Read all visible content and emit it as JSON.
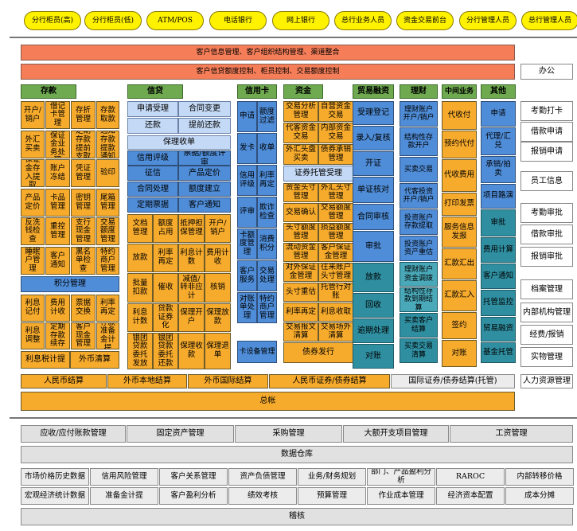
{
  "top_channels": [
    "分行柜员(高)",
    "分行柜员(低)",
    "ATM/POS",
    "电话银行",
    "网上银行",
    "总行业务人员",
    "资金交易前台",
    "分行管理人员",
    "总行管理人员"
  ],
  "banners": {
    "customer_info": "客户信息管理、客户组织结构管理、渠道整合",
    "credit_control": "客户信贷额度控制、柜员控制、交易额度控制",
    "office": "办公"
  },
  "categories": {
    "deposit": "存款",
    "credit": "信贷",
    "card": "信用卡",
    "funds": "资金",
    "trade_finance": "贸易融资",
    "wealth": "理财",
    "intermediary": "中间业务",
    "other": "其他"
  },
  "deposit": {
    "items": [
      "开户/销户",
      "借记卡管理",
      "存折管理",
      "存款取款",
      "外汇买卖",
      "股票保证金业务处理",
      "定期存款提前支取",
      "通知存款提款通知",
      "保证金存入提取",
      "账户冻结",
      "凭证管理",
      "验印",
      "产品定价",
      "卡品管理",
      "密钥管理",
      "尾箱管理",
      "反洗钱检查",
      "重控管理",
      "支行现金管理",
      "交易额度管理",
      "睡眠户管理",
      "客户通知",
      "黑名单检查",
      "特约商户管理"
    ],
    "points": "积分管理",
    "items2": [
      "利息记付",
      "费用计收",
      "票据交换",
      "利率再定",
      "利息调整",
      "定期存款续存",
      "客户现金管理",
      "存款准备金计提"
    ],
    "foot": [
      "利息税计提",
      "外币清算"
    ]
  },
  "credit": {
    "pairs": [
      "申请受理",
      "合同变更",
      "还款",
      "提前还款"
    ],
    "docs": "保理收单",
    "rows": [
      "信用评级",
      "票据/额度评审",
      "征信",
      "产品定价",
      "合同处理",
      "额度建立",
      "定期票据",
      "客户通知"
    ],
    "grid": [
      "文档管理",
      "额度占用",
      "抵押担保管理",
      "开户/销户",
      "放款",
      "利率再定",
      "利息计数",
      "费用计收",
      "批量扣款",
      "催收",
      "减值/转非应计",
      "核销",
      "利息计数",
      "贷款证券化",
      "保理开户",
      "保理放款",
      "银团贷款委托发放",
      "银团贷款委托还款",
      "保理收款",
      "保理退单"
    ]
  },
  "card": {
    "items": [
      "申请",
      "额度过滤",
      "发卡",
      "收单",
      "信用评级",
      "利率再定",
      "评审",
      "欺诈检查",
      "卡额度管理",
      "消费积分",
      "客户服务",
      "交易处理",
      "对账单处理",
      "特约商户管理"
    ],
    "foot": "卡设备管理"
  },
  "funds": {
    "top": [
      "交易分析管理",
      "自营资金交易",
      "代客资金交易",
      "内部资金交易",
      "外汇头盘买卖",
      "债券承销管理"
    ],
    "hosting": "证券托管受理",
    "grid": [
      "资金头寸管理",
      "外汇头寸管理",
      "交易确认",
      "交易额度管理",
      "头寸额度管理",
      "损益额度管理",
      "流动资金管理",
      "客户保证金管理",
      "对外保证金管理",
      "往来账户头寸管理",
      "头寸重估",
      "托管行对账",
      "利率再定",
      "利息收取",
      "交易报文清算",
      "交易场外清算"
    ],
    "foot": "债券发行"
  },
  "trade_finance": {
    "items": [
      "受理登记",
      "录入/复核",
      "开证",
      "单证核对",
      "合同审核",
      "审批",
      "放款",
      "回收",
      "逾期处理",
      "对账"
    ]
  },
  "wealth": {
    "items": [
      "理财账户开户/销户",
      "结构性存款开户",
      "买卖交易",
      "代客投资开户/销户",
      "投资账户存款提取",
      "投资账户资产重估",
      "理财账户资金调拨",
      "结构性存款到期结算",
      "买卖客户结算",
      "买卖交易清算"
    ]
  },
  "intermediary": {
    "items": [
      "代收付",
      "预约代付",
      "代收费用",
      "打印发票",
      "服务信息发报",
      "汇款汇出",
      "汇款汇入",
      "签约",
      "对账"
    ]
  },
  "other": {
    "items": [
      "申请",
      "代理/汇兑",
      "承销/拍卖",
      "项目路演",
      "审批",
      "费用计算",
      "客户通知",
      "托管监控",
      "贸易融资",
      "基金托管"
    ]
  },
  "office": {
    "items": [
      "考勤打卡",
      "借款申请",
      "报销申请",
      "员工信息",
      "考勤审批",
      "借款审批",
      "报销审批",
      "档案管理",
      "内部机构管理",
      "经费/报销",
      "实物管理"
    ],
    "hr": "人力资源管理"
  },
  "settlement": [
    "人民币结算",
    "外币本地结算",
    "外币国际结算",
    "人民币证券/债券结算",
    "国际证券/债券结算(托管)"
  ],
  "ledger": "总帐",
  "mgmt_row": [
    "应收/应付账款管理",
    "固定资产管理",
    "采购管理",
    "大额开支项目管理",
    "工资管理"
  ],
  "warehouse": "数据仓库",
  "analytics_row1": [
    "市场价格历史数据",
    "信用风险管理",
    "客户关系管理",
    "资产负债管理",
    "业务/财务规划",
    "部门、产品盈利分析",
    "RAROC",
    "内部转移价格"
  ],
  "analytics_row2": [
    "宏观经济统计数据",
    "准备金计提",
    "客户盈利分析",
    "绩效考核",
    "预算管理",
    "作业成本管理",
    "经济资本配置",
    "成本分摊"
  ],
  "audit": "稽核"
}
